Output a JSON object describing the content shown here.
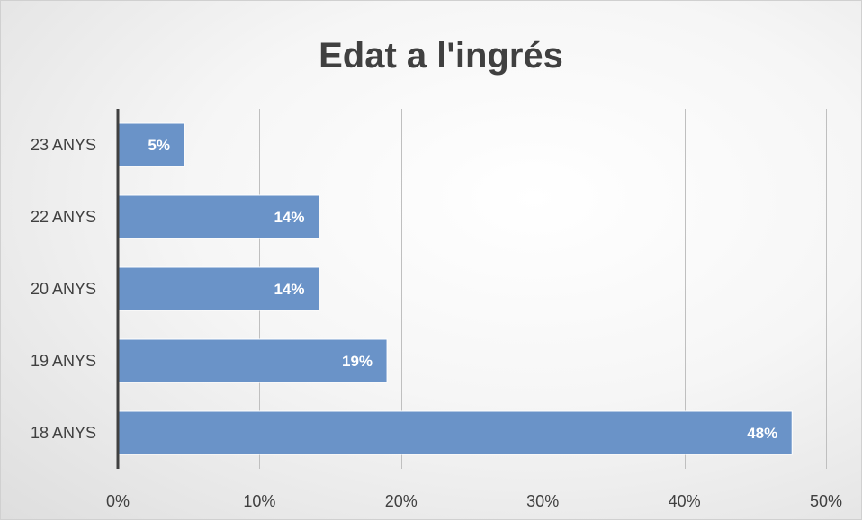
{
  "chart_data": {
    "type": "bar",
    "orientation": "horizontal",
    "title": "Edat a l'ingrés",
    "categories": [
      "18 ANYS",
      "19 ANYS",
      "20 ANYS",
      "22 ANYS",
      "23 ANYS"
    ],
    "values": [
      0.476,
      0.19,
      0.142,
      0.142,
      0.047
    ],
    "data_labels": [
      "48%",
      "19%",
      "14%",
      "14%",
      "5%"
    ],
    "xlim": [
      0,
      0.5
    ],
    "x_ticks": [
      0,
      0.1,
      0.2,
      0.3,
      0.4,
      0.5
    ],
    "x_tick_labels": [
      "0%",
      "10%",
      "20%",
      "30%",
      "40%",
      "50%"
    ],
    "grid": true,
    "legend": "none",
    "bar_color": "#6a93c8",
    "bar_edge_color": "#ffffff"
  }
}
